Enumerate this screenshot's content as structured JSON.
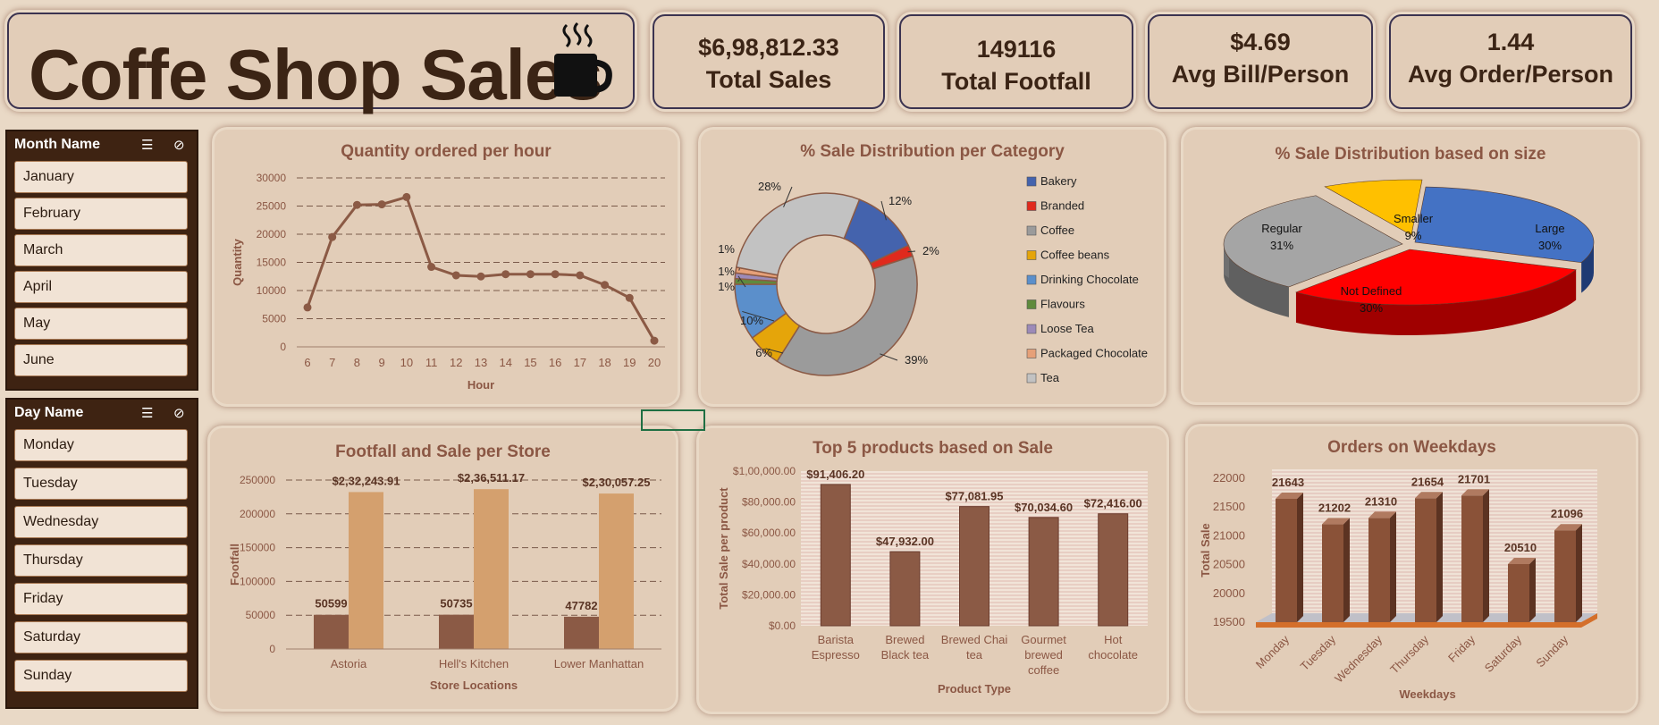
{
  "header": {
    "title": "Coffe Shop Sales"
  },
  "kpis": [
    {
      "value": "$6,98,812.33",
      "label": "Total Sales"
    },
    {
      "value": "149116",
      "label": "Total Footfall"
    },
    {
      "value": "$4.69",
      "label": "Avg Bill/Person"
    },
    {
      "value": "1.44",
      "label": "Avg Order/Person"
    }
  ],
  "slicers": {
    "month": {
      "title": "Month Name",
      "items": [
        "January",
        "February",
        "March",
        "April",
        "May",
        "June"
      ]
    },
    "day": {
      "title": "Day Name",
      "items": [
        "Monday",
        "Tuesday",
        "Wednesday",
        "Thursday",
        "Friday",
        "Saturday",
        "Sunday"
      ]
    }
  },
  "colors": {
    "brown": "#8b5a45",
    "tan": "#d4a06e",
    "accent_title": "#8b5744"
  },
  "chart_data": [
    {
      "type": "line",
      "title": "Quantity ordered per hour",
      "xlabel": "Hour",
      "ylabel": "Quantity",
      "ylim": [
        0,
        30000
      ],
      "yticks": [
        0,
        5000,
        10000,
        15000,
        20000,
        25000,
        30000
      ],
      "x": [
        6,
        7,
        8,
        9,
        10,
        11,
        12,
        13,
        14,
        15,
        16,
        17,
        18,
        19,
        20
      ],
      "values": [
        7000,
        19500,
        25200,
        25300,
        26600,
        14200,
        12700,
        12500,
        12900,
        12900,
        12900,
        12700,
        11000,
        8700,
        1100
      ]
    },
    {
      "type": "pie",
      "title": "% Sale Distribution per Category",
      "categories": [
        "Bakery",
        "Branded",
        "Coffee",
        "Coffee beans",
        "Drinking Chocolate",
        "Flavours",
        "Loose Tea",
        "Packaged Chocolate",
        "Tea"
      ],
      "values": [
        12,
        2,
        39,
        6,
        10,
        1,
        1,
        1,
        28
      ],
      "labels": [
        "12%",
        "2%",
        "39%",
        "6%",
        "10%",
        "1%",
        "1%",
        "1%",
        "28%"
      ],
      "colors": [
        "#4463ad",
        "#e02a1d",
        "#9b9b9b",
        "#e5a50a",
        "#5b8fcb",
        "#5f8a3c",
        "#9c8ab8",
        "#e6a078",
        "#c2c2c2"
      ]
    },
    {
      "type": "pie",
      "title": "% Sale Distribution based on size",
      "categories": [
        "Large",
        "Not Defined",
        "Regular",
        "Smaller"
      ],
      "values": [
        30,
        30,
        31,
        9
      ],
      "labels": [
        "30%",
        "30%",
        "31%",
        "9%"
      ],
      "colors": [
        "#4472c4",
        "#ff0000",
        "#a5a5a5",
        "#ffc000"
      ]
    },
    {
      "type": "bar",
      "title": "Footfall and Sale per Store",
      "xlabel": "Store Locations",
      "ylabel": "Footfall",
      "ylim": [
        0,
        250000
      ],
      "yticks": [
        0,
        50000,
        100000,
        150000,
        200000,
        250000
      ],
      "categories": [
        "Astoria",
        "Hell's Kitchen",
        "Lower Manhattan"
      ],
      "series": [
        {
          "values": [
            50599,
            50735,
            47782
          ],
          "labels": [
            "50599",
            "50735",
            "47782"
          ]
        },
        {
          "values": [
            232243.91,
            236511.17,
            230057.25
          ],
          "labels": [
            "$2,32,243.91",
            "$2,36,511.17",
            "$2,30,057.25"
          ]
        }
      ]
    },
    {
      "type": "bar",
      "title": "Top 5 products based on Sale",
      "xlabel": "Product Type",
      "ylabel": "Total Sale per product",
      "ylim": [
        0,
        100000
      ],
      "yticks": [
        "$0.00",
        "$20,000.00",
        "$40,000.00",
        "$60,000.00",
        "$80,000.00",
        "$1,00,000.00"
      ],
      "categories": [
        [
          "Barista",
          "Espresso"
        ],
        [
          "Brewed",
          "Black tea"
        ],
        [
          "Brewed Chai",
          "tea"
        ],
        [
          "Gourmet",
          "brewed",
          "coffee"
        ],
        [
          "Hot",
          "chocolate"
        ]
      ],
      "values": [
        91406.2,
        47932.0,
        77081.95,
        70034.6,
        72416.0
      ],
      "labels": [
        "$91,406.20",
        "$47,932.00",
        "$77,081.95",
        "$70,034.60",
        "$72,416.00"
      ]
    },
    {
      "type": "bar",
      "title": "Orders on Weekdays",
      "xlabel": "Weekdays",
      "ylabel": "Total Sale",
      "ylim": [
        19500,
        22000
      ],
      "yticks": [
        19500,
        20000,
        20500,
        21000,
        21500,
        22000
      ],
      "categories": [
        "Monday",
        "Tuesday",
        "Wednesday",
        "Thursday",
        "Friday",
        "Saturday",
        "Sunday"
      ],
      "values": [
        21643,
        21202,
        21310,
        21654,
        21701,
        20510,
        21096
      ],
      "labels": [
        "21643",
        "21202",
        "21310",
        "21654",
        "21701",
        "20510",
        "21096"
      ]
    }
  ]
}
